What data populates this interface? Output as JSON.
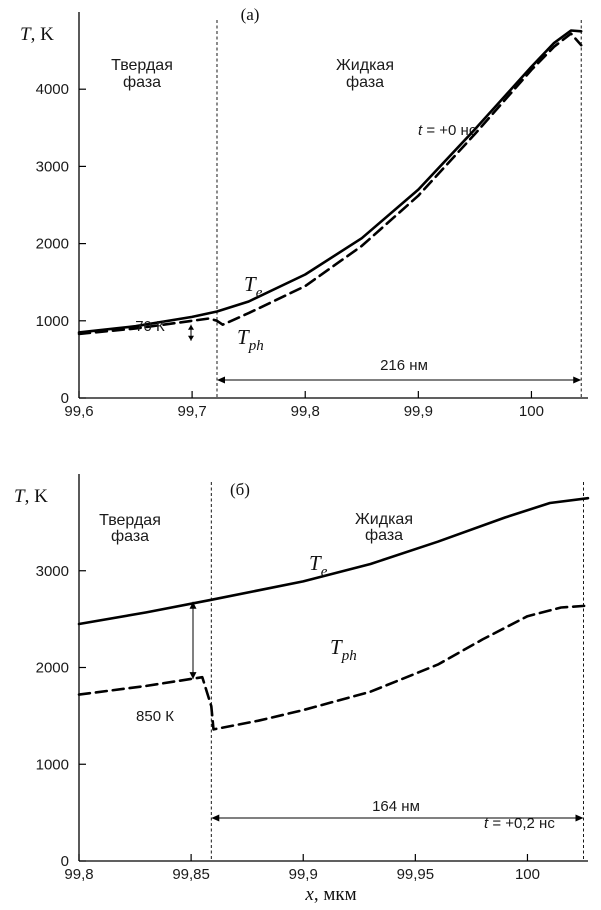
{
  "x_axis_label_var": "x",
  "x_axis_label_unit": ", мкм",
  "chart_data": [
    {
      "type": "line",
      "panel": "(a)",
      "ylabel_var": "T",
      "ylabel_unit": ", K",
      "xlim": [
        99.6,
        100.05
      ],
      "ylim": [
        0,
        5000
      ],
      "xticks": [
        99.6,
        99.7,
        99.8,
        99.9,
        100
      ],
      "xtick_labels": [
        "99,6",
        "99,7",
        "99,8",
        "99,9",
        "100"
      ],
      "yticks": [
        0,
        1000,
        2000,
        3000,
        4000
      ],
      "ytick_labels": [
        "0",
        "1000",
        "2000",
        "3000",
        "4000"
      ],
      "phase_left": [
        "Твердая",
        "фаза"
      ],
      "phase_right": [
        "Жидкая",
        "фаза"
      ],
      "time_var": "t",
      "time_value": " = +0 нс",
      "boundaries_x": [
        99.722,
        100.044
      ],
      "gap_annotation": "70 К",
      "width_annotation": "216 нм",
      "series": [
        {
          "name": "T_e",
          "label_main": "T",
          "label_sub": "e",
          "style": "solid",
          "x": [
            99.6,
            99.65,
            99.7,
            99.722,
            99.75,
            99.8,
            99.85,
            99.9,
            99.95,
            100.0,
            100.02,
            100.035,
            100.044
          ],
          "y": [
            850,
            930,
            1050,
            1120,
            1250,
            1600,
            2070,
            2700,
            3480,
            4290,
            4600,
            4760,
            4750
          ]
        },
        {
          "name": "T_ph",
          "label_main": "T",
          "label_sub": "ph",
          "style": "dashed",
          "x": [
            99.6,
            99.65,
            99.7,
            99.715,
            99.722,
            99.727,
            99.75,
            99.8,
            99.85,
            99.9,
            99.95,
            100.0,
            100.02,
            100.035,
            100.044
          ],
          "y": [
            830,
            900,
            1000,
            1030,
            1000,
            950,
            1100,
            1450,
            1970,
            2620,
            3420,
            4250,
            4550,
            4720,
            4570
          ]
        }
      ]
    },
    {
      "type": "line",
      "panel": "(б)",
      "ylabel_var": "T",
      "ylabel_unit": ", K",
      "xlim": [
        99.8,
        100.027
      ],
      "ylim": [
        0,
        4000
      ],
      "xticks": [
        99.8,
        99.85,
        99.9,
        99.95,
        100
      ],
      "xtick_labels": [
        "99,8",
        "99,85",
        "99,9",
        "99,95",
        "100"
      ],
      "yticks": [
        0,
        1000,
        2000,
        3000
      ],
      "ytick_labels": [
        "0",
        "1000",
        "2000",
        "3000"
      ],
      "phase_left": [
        "Твердая",
        "фаза"
      ],
      "phase_right": [
        "Жидкая",
        "фаза"
      ],
      "time_var": "t",
      "time_value": " = +0,2 нс",
      "boundaries_x": [
        99.859,
        100.025
      ],
      "gap_annotation": "850 К",
      "width_annotation": "164 нм",
      "series": [
        {
          "name": "T_e",
          "label_main": "T",
          "label_sub": "e",
          "style": "solid",
          "x": [
            99.8,
            99.83,
            99.859,
            99.9,
            99.93,
            99.96,
            99.99,
            100.01,
            100.027
          ],
          "y": [
            2450,
            2570,
            2700,
            2890,
            3070,
            3300,
            3550,
            3700,
            3750
          ]
        },
        {
          "name": "T_ph",
          "label_main": "T",
          "label_sub": "ph",
          "style": "dashed",
          "x": [
            99.8,
            99.83,
            99.855,
            99.857,
            99.859,
            99.86,
            99.88,
            99.9,
            99.93,
            99.96,
            99.98,
            100.0,
            100.015,
            100.027
          ],
          "y": [
            1720,
            1810,
            1900,
            1750,
            1600,
            1360,
            1450,
            1560,
            1750,
            2030,
            2290,
            2530,
            2620,
            2640
          ]
        }
      ]
    }
  ]
}
